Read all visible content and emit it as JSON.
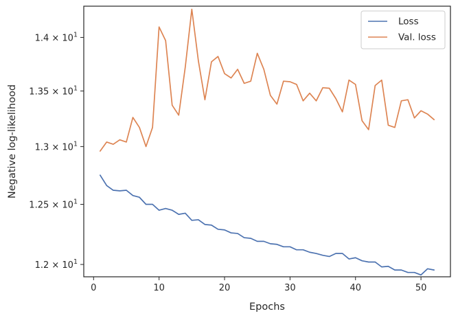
{
  "chart_data": {
    "type": "line",
    "xlabel": "Epochs",
    "ylabel": "Negative log-likelihood",
    "xlim": [
      -1.5,
      54.5
    ],
    "ylim": [
      11.9,
      14.3
    ],
    "yscale": "log",
    "grid": false,
    "legend_position": "top-right",
    "x_ticks": [
      0,
      10,
      20,
      30,
      40,
      50
    ],
    "x_tick_labels": [
      "0",
      "10",
      "20",
      "30",
      "40",
      "50"
    ],
    "y_ticks": [
      12.0,
      12.5,
      13.0,
      13.5,
      14.0
    ],
    "y_tick_labels": [
      {
        "mant": "1.2",
        "exp": "1"
      },
      {
        "mant": "1.25",
        "exp": "1"
      },
      {
        "mant": "1.3",
        "exp": "1"
      },
      {
        "mant": "1.35",
        "exp": "1"
      },
      {
        "mant": "1.4",
        "exp": "1"
      }
    ],
    "tick_label_times": "×",
    "tick_label_base": "10",
    "x": [
      1,
      2,
      3,
      4,
      5,
      6,
      7,
      8,
      9,
      10,
      11,
      12,
      13,
      14,
      15,
      16,
      17,
      18,
      19,
      20,
      21,
      22,
      23,
      24,
      25,
      26,
      27,
      28,
      29,
      30,
      31,
      32,
      33,
      34,
      35,
      36,
      37,
      38,
      39,
      40,
      41,
      42,
      43,
      44,
      45,
      46,
      47,
      48,
      49,
      50,
      51,
      52
    ],
    "series": [
      {
        "name": "Loss",
        "color": "#4c72b0",
        "values": [
          12.75,
          12.66,
          12.62,
          12.615,
          12.62,
          12.575,
          12.56,
          12.5,
          12.5,
          12.45,
          12.465,
          12.45,
          12.415,
          12.425,
          12.365,
          12.37,
          12.33,
          12.325,
          12.29,
          12.285,
          12.26,
          12.255,
          12.22,
          12.215,
          12.19,
          12.19,
          12.17,
          12.165,
          12.145,
          12.145,
          12.12,
          12.12,
          12.1,
          12.09,
          12.075,
          12.065,
          12.09,
          12.09,
          12.045,
          12.055,
          12.03,
          12.02,
          12.02,
          11.98,
          11.985,
          11.955,
          11.955,
          11.935,
          11.935,
          11.915,
          11.965,
          11.955
        ]
      },
      {
        "name": "Val. loss",
        "color": "#dd8452",
        "values": [
          12.96,
          13.04,
          13.02,
          13.06,
          13.04,
          13.26,
          13.17,
          13.0,
          13.17,
          14.1,
          13.97,
          13.37,
          13.28,
          13.72,
          14.27,
          13.78,
          13.42,
          13.77,
          13.82,
          13.66,
          13.62,
          13.7,
          13.57,
          13.59,
          13.85,
          13.7,
          13.46,
          13.38,
          13.59,
          13.585,
          13.56,
          13.41,
          13.48,
          13.41,
          13.53,
          13.525,
          13.43,
          13.31,
          13.6,
          13.56,
          13.23,
          13.15,
          13.55,
          13.6,
          13.19,
          13.17,
          13.41,
          13.42,
          13.255,
          13.32,
          13.29,
          13.24
        ]
      }
    ]
  }
}
